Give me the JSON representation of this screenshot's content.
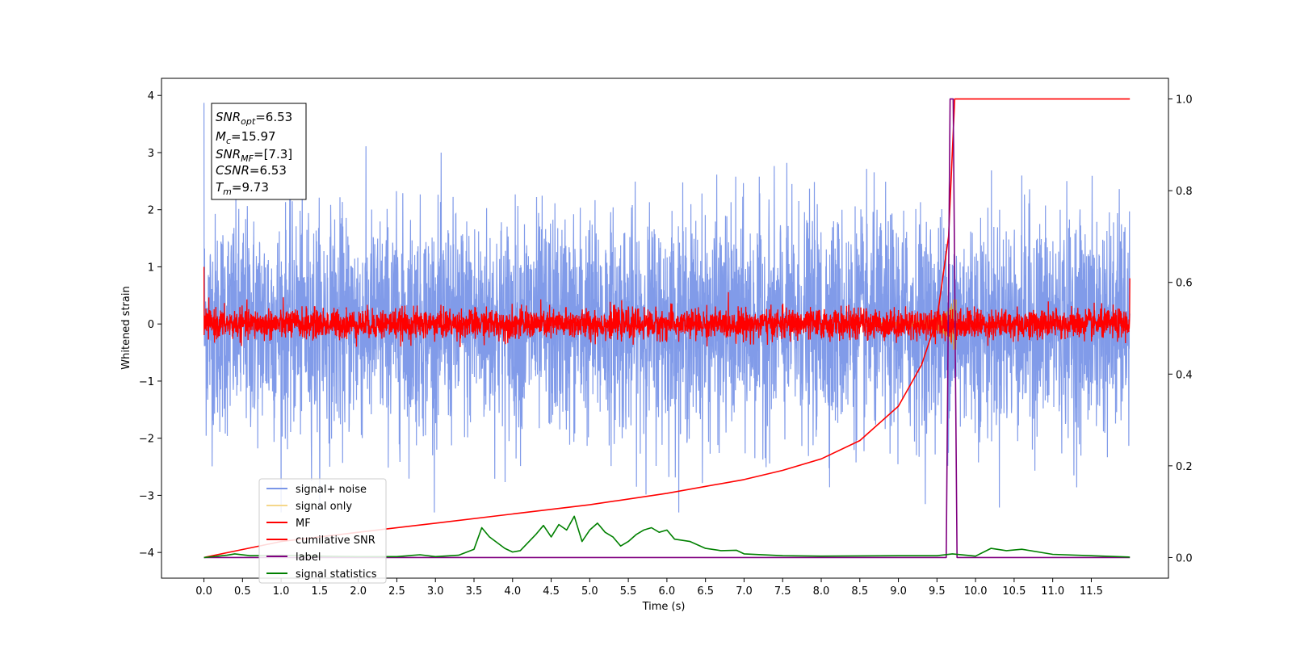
{
  "chart_data": {
    "type": "line",
    "xlabel": "Time (s)",
    "ylabel": "Whitened strain",
    "xlim": [
      -0.55,
      12.5
    ],
    "ylim": [
      -4.45,
      4.3
    ],
    "y2lim": [
      -0.045,
      1.045
    ],
    "x_ticks": [
      "0.0",
      "0.5",
      "1.0",
      "1.5",
      "2.0",
      "2.5",
      "3.0",
      "3.5",
      "4.0",
      "4.5",
      "5.0",
      "5.5",
      "6.0",
      "6.5",
      "7.0",
      "7.5",
      "8.0",
      "8.5",
      "9.0",
      "9.5",
      "10.0",
      "10.5",
      "11.0",
      "11.5"
    ],
    "y_ticks": [
      "4",
      "3",
      "2",
      "1",
      "0",
      "−1",
      "−2",
      "−3",
      "−4"
    ],
    "y2_ticks": [
      "1.0",
      "0.8",
      "0.6",
      "0.4",
      "0.2",
      "0.0"
    ],
    "annotation": {
      "snr_opt": {
        "sym": "SNR",
        "sub": "opt",
        "value": "=6.53"
      },
      "mc": {
        "sym": "M",
        "sub": "c",
        "value": "=15.97"
      },
      "snr_mf": {
        "sym": "SNR",
        "sub": "MF",
        "value": "=[7.3]"
      },
      "csnr": {
        "sym": "CSNR",
        "value": "=6.53"
      },
      "tm": {
        "sym": "T",
        "sub": "m",
        "value": "=9.73"
      }
    },
    "series": [
      {
        "name": "signal+ noise",
        "color": "#7a96e8",
        "note": "whitened strain noise, amplitude ~ +/-2.5 peaks to 3.9"
      },
      {
        "name": "signal only",
        "color": "#f5d78a"
      },
      {
        "name": "MF",
        "color": "#ff0000"
      },
      {
        "name": "cumilative SNR",
        "color": "#ff0000",
        "axis": "right",
        "points": [
          [
            0.0,
            0.0
          ],
          [
            1.0,
            0.035
          ],
          [
            2.0,
            0.055
          ],
          [
            3.0,
            0.075
          ],
          [
            4.0,
            0.095
          ],
          [
            5.0,
            0.115
          ],
          [
            6.0,
            0.14
          ],
          [
            7.0,
            0.17
          ],
          [
            7.5,
            0.19
          ],
          [
            8.0,
            0.215
          ],
          [
            8.5,
            0.255
          ],
          [
            9.0,
            0.33
          ],
          [
            9.3,
            0.42
          ],
          [
            9.5,
            0.52
          ],
          [
            9.65,
            0.7
          ],
          [
            9.73,
            1.0
          ],
          [
            12.0,
            1.0
          ]
        ]
      },
      {
        "name": "label",
        "color": "#800080",
        "axis": "right",
        "points": [
          [
            0.0,
            0.0
          ],
          [
            9.62,
            0.0
          ],
          [
            9.67,
            1.0
          ],
          [
            9.71,
            1.0
          ],
          [
            9.76,
            0.0
          ],
          [
            12.0,
            0.0
          ]
        ]
      },
      {
        "name": "signal statistics",
        "color": "#008000",
        "axis": "right",
        "points": [
          [
            0.0,
            0.0
          ],
          [
            0.3,
            0.005
          ],
          [
            0.4,
            0.008
          ],
          [
            0.6,
            0.004
          ],
          [
            1.0,
            0.005
          ],
          [
            1.5,
            0.003
          ],
          [
            2.0,
            0.002
          ],
          [
            2.5,
            0.002
          ],
          [
            2.8,
            0.006
          ],
          [
            3.0,
            0.002
          ],
          [
            3.3,
            0.005
          ],
          [
            3.5,
            0.018
          ],
          [
            3.6,
            0.065
          ],
          [
            3.7,
            0.045
          ],
          [
            3.9,
            0.02
          ],
          [
            4.0,
            0.012
          ],
          [
            4.1,
            0.015
          ],
          [
            4.3,
            0.05
          ],
          [
            4.4,
            0.07
          ],
          [
            4.5,
            0.045
          ],
          [
            4.6,
            0.072
          ],
          [
            4.7,
            0.06
          ],
          [
            4.8,
            0.09
          ],
          [
            4.9,
            0.035
          ],
          [
            5.0,
            0.06
          ],
          [
            5.1,
            0.075
          ],
          [
            5.2,
            0.055
          ],
          [
            5.3,
            0.045
          ],
          [
            5.4,
            0.025
          ],
          [
            5.5,
            0.035
          ],
          [
            5.6,
            0.05
          ],
          [
            5.7,
            0.06
          ],
          [
            5.8,
            0.065
          ],
          [
            5.9,
            0.055
          ],
          [
            6.0,
            0.06
          ],
          [
            6.1,
            0.04
          ],
          [
            6.3,
            0.035
          ],
          [
            6.5,
            0.02
          ],
          [
            6.7,
            0.015
          ],
          [
            6.9,
            0.016
          ],
          [
            7.0,
            0.008
          ],
          [
            7.5,
            0.004
          ],
          [
            8.0,
            0.003
          ],
          [
            9.0,
            0.004
          ],
          [
            9.5,
            0.004
          ],
          [
            9.7,
            0.008
          ],
          [
            10.0,
            0.003
          ],
          [
            10.2,
            0.02
          ],
          [
            10.4,
            0.015
          ],
          [
            10.6,
            0.018
          ],
          [
            11.0,
            0.007
          ],
          [
            11.5,
            0.004
          ],
          [
            12.0,
            0.001
          ]
        ]
      }
    ],
    "legend": {
      "placement": "lower-left",
      "entries": [
        {
          "label": "signal+ noise",
          "color": "#7a96e8"
        },
        {
          "label": "signal only",
          "color": "#f5d78a"
        },
        {
          "label": "MF",
          "color": "#ff0000"
        },
        {
          "label": "cumilative SNR",
          "color": "#ff0000"
        },
        {
          "label": "label",
          "color": "#800080"
        },
        {
          "label": "signal statistics",
          "color": "#008000"
        }
      ]
    }
  }
}
